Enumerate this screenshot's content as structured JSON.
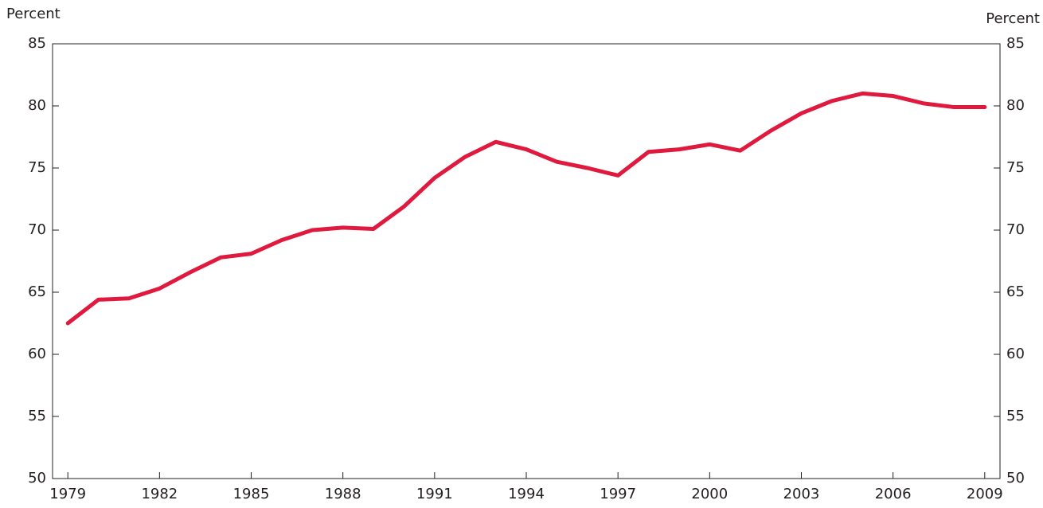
{
  "chart_data": {
    "type": "line",
    "y_label": "Percent",
    "y2_label": "Percent",
    "x": [
      1979,
      1980,
      1981,
      1982,
      1983,
      1984,
      1985,
      1986,
      1987,
      1988,
      1989,
      1990,
      1991,
      1992,
      1993,
      1994,
      1995,
      1996,
      1997,
      1998,
      1999,
      2000,
      2001,
      2002,
      2003,
      2004,
      2005,
      2006,
      2007,
      2008,
      2009
    ],
    "series": [
      {
        "name": "Percent",
        "color": "#e0193f",
        "values": [
          62.5,
          64.4,
          64.5,
          65.3,
          66.6,
          67.8,
          68.1,
          69.2,
          70.0,
          70.2,
          70.1,
          71.9,
          74.2,
          75.9,
          77.1,
          76.5,
          75.5,
          75.0,
          74.4,
          76.3,
          76.5,
          76.9,
          76.4,
          78.0,
          79.4,
          80.4,
          81.0,
          80.8,
          80.2,
          79.9,
          79.9
        ]
      }
    ],
    "xlim": [
      1978.5,
      2009.5
    ],
    "xticks": [
      1979,
      1982,
      1985,
      1988,
      1991,
      1994,
      1997,
      2000,
      2003,
      2006,
      2009
    ],
    "ylim": [
      50,
      85
    ],
    "yticks": [
      50,
      55,
      60,
      65,
      70,
      75,
      80,
      85
    ],
    "y2lim": [
      50,
      85
    ],
    "y2ticks": [
      50,
      55,
      60,
      65,
      70,
      75,
      80,
      85
    ],
    "grid": false
  }
}
